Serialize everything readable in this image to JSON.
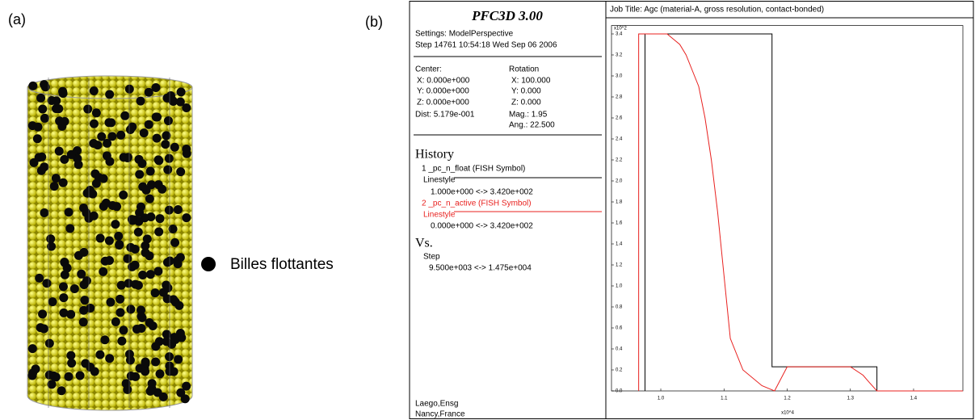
{
  "panels": {
    "a": "(a)",
    "b": "(b)",
    "legend": "Billes flottantes"
  },
  "sidebar": {
    "title": "PFC3D 3.00",
    "settings": "Settings:  ModelPerspective",
    "step": "Step 14761  10:54:18 Wed Sep 06 2006",
    "center": {
      "label": "Center:",
      "x": "X: 0.000e+000",
      "y": "Y: 0.000e+000",
      "z": "Z: 0.000e+000",
      "dist": "Dist: 5.179e-001"
    },
    "rotation": {
      "label": "Rotation",
      "x": "X: 100.000",
      "y": "Y:   0.000",
      "z": "Z:   0.000",
      "mag": "Mag.:     1.95",
      "ang": "Ang.:  22.500"
    },
    "history": {
      "label": "History",
      "linestyle": [
        "Linestyle",
        "Linestyle"
      ],
      "ranges": [
        "1.000e+000 <->  3.420e+002",
        "0.000e+000 <->  3.420e+002"
      ],
      "vs_label": "Vs.",
      "vs_name": "Step",
      "vs_range": "9.500e+003 <->  1.475e+004"
    },
    "footer": [
      "Laego,Ensg",
      "Nancy,France"
    ]
  },
  "chart_data": {
    "type": "line",
    "title": "Job Title: Agc (material-A, gross resolution, contact-bonded)",
    "y_label": "x10^2",
    "x_label": "x10^4",
    "x": [
      0.965,
      0.965,
      0.975,
      0.975,
      1.01,
      1.02,
      1.03,
      1.04,
      1.05,
      1.06,
      1.07,
      1.08,
      1.09,
      1.1,
      1.11,
      1.13,
      1.16,
      1.176,
      1.176,
      1.18,
      1.2,
      1.3,
      1.32,
      1.33,
      1.342,
      1.342,
      1.478
    ],
    "series": [
      {
        "name": "1 _pc_n_float (FISH Symbol)",
        "color": "#000000",
        "values": [
          null,
          null,
          0,
          3.4,
          3.4,
          3.4,
          3.4,
          3.4,
          3.4,
          3.4,
          3.4,
          3.4,
          3.4,
          3.4,
          3.4,
          3.4,
          3.4,
          3.4,
          0.23,
          0.23,
          0.23,
          0.23,
          0.23,
          0.23,
          0.23,
          0,
          0
        ]
      },
      {
        "name": "2 _pc_n_active (FISH Symbol)",
        "color": "#e8211f",
        "values": [
          0,
          3.4,
          3.4,
          3.4,
          3.4,
          3.35,
          3.3,
          3.2,
          3.05,
          2.9,
          2.6,
          2.2,
          1.7,
          1.1,
          0.5,
          0.2,
          0.05,
          0.01,
          0.01,
          0,
          0.23,
          0.23,
          0.15,
          0.08,
          0,
          0,
          0
        ]
      }
    ],
    "xlim": [
      0.922,
      1.478
    ],
    "ylim": [
      0,
      3.48
    ],
    "xticks": [
      {
        "value": 1,
        "label": "1.0"
      },
      1.1,
      1.2,
      1.3,
      1.4
    ],
    "yticks": [
      {
        "value": 0,
        "label": "0.0"
      },
      0.2,
      0.4,
      0.6,
      0.8,
      {
        "value": 1,
        "label": "1.0"
      },
      1.2,
      1.4,
      1.6,
      1.8,
      {
        "value": 2,
        "label": "2.0"
      },
      2.2,
      2.4,
      2.6,
      2.8,
      {
        "value": 3,
        "label": "3.0"
      },
      3.2,
      3.4
    ]
  }
}
